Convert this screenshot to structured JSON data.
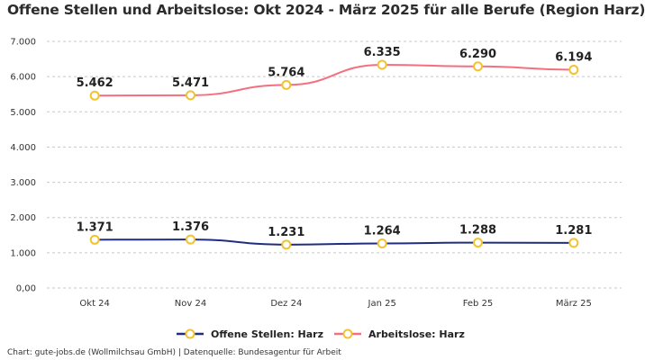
{
  "title": "Offene Stellen und Arbeitslose: Okt 2024 - März 2025 für alle Berufe (Region Harz)",
  "footer": "Chart: gute-jobs.de (Wollmilchsau GmbH) | Datenquelle: Bundesagentur für Arbeit",
  "chart_data": {
    "type": "line",
    "categories": [
      "Okt 24",
      "Nov 24",
      "Dez 24",
      "Jan 25",
      "Feb 25",
      "März 25"
    ],
    "ylim": [
      0,
      7000
    ],
    "yticks": [
      0,
      1000,
      2000,
      3000,
      4000,
      5000,
      6000,
      7000
    ],
    "ytick_labels": [
      "0,00",
      "1.000",
      "2.000",
      "3.000",
      "4.000",
      "5.000",
      "6.000",
      "7.000"
    ],
    "grid": true,
    "legend_position": "bottom",
    "series": [
      {
        "name": "Offene Stellen: Harz",
        "color": "#1f2e80",
        "values": [
          1371,
          1376,
          1231,
          1264,
          1288,
          1281
        ],
        "labels": [
          "1.371",
          "1.376",
          "1.231",
          "1.264",
          "1.288",
          "1.281"
        ]
      },
      {
        "name": "Arbeitslose: Harz",
        "color": "#f4707f",
        "values": [
          5462,
          5471,
          5764,
          6335,
          6290,
          6194
        ],
        "labels": [
          "5.462",
          "5.471",
          "5.764",
          "6.335",
          "6.290",
          "6.194"
        ]
      }
    ],
    "marker_color": "#f2c232"
  }
}
